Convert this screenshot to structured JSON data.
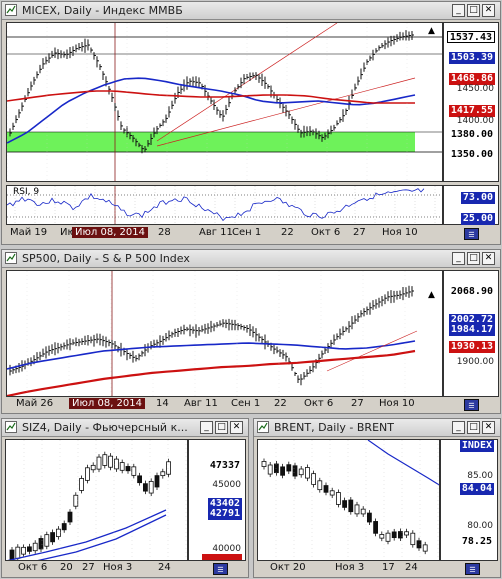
{
  "windows": {
    "micex": {
      "title": "MICEX, Daily - Индекс ММВБ",
      "price_labels": {
        "last": "1537.43",
        "ma_blue": "1503.39",
        "red_line": "1468.86",
        "ma_red": "1417.55",
        "band_top": "1380.00",
        "band_bottom": "1350.00",
        "tick_1450": "1450.00",
        "tick_1400": "1400.00"
      },
      "rsi": {
        "name": "RSI, 9",
        "upper": "73.00",
        "lower": "25.00"
      },
      "x_labels": [
        "Май 19",
        "Ию",
        "28",
        "Авг 11",
        "Сен 1",
        "22",
        "Окт 6",
        "27",
        "Ноя 10"
      ],
      "cursor_date": "Июл 08, 2014",
      "colors": {
        "blue_label": "#1828b0",
        "red_label": "#cc1111",
        "band": "#6ef25a"
      }
    },
    "sp500": {
      "title": "SP500, Daily - S & P 500 Index",
      "price_labels": {
        "last": "2068.90",
        "ma_blue": "2002.72",
        "ma_blue_b": "1984.17",
        "ma_red": "1930.13",
        "tick_1900": "1900.00"
      },
      "x_labels": [
        "Май 26",
        "14",
        "Авг 11",
        "Сен 1",
        "22",
        "Окт 6",
        "27",
        "Ноя 10"
      ],
      "cursor_date": "Июл 08, 2014"
    },
    "siz4": {
      "title": "SIZ4, Daily - Фьючерсный к...",
      "price_labels": {
        "last": "47337",
        "tick_45000": "45000",
        "ma_blue": "43402",
        "ma_blue_b": "42791",
        "tick_40000": "40000"
      },
      "x_labels": [
        "Окт 6",
        "20",
        "27",
        "Ноя 3",
        "24"
      ]
    },
    "brent": {
      "title": "BRENT, Daily - BRENT",
      "price_labels": {
        "index": "INDEX",
        "tick_85": "85.00",
        "ma_blue": "84.04",
        "tick_80": "80.00",
        "last": "78.25"
      },
      "x_labels": [
        "Окт 20",
        "Ноя 3",
        "17",
        "24"
      ]
    }
  },
  "icons": [
    "window-menu-icon",
    "minimize-icon",
    "maximize-icon",
    "close-icon",
    "chart-settings-icon"
  ]
}
